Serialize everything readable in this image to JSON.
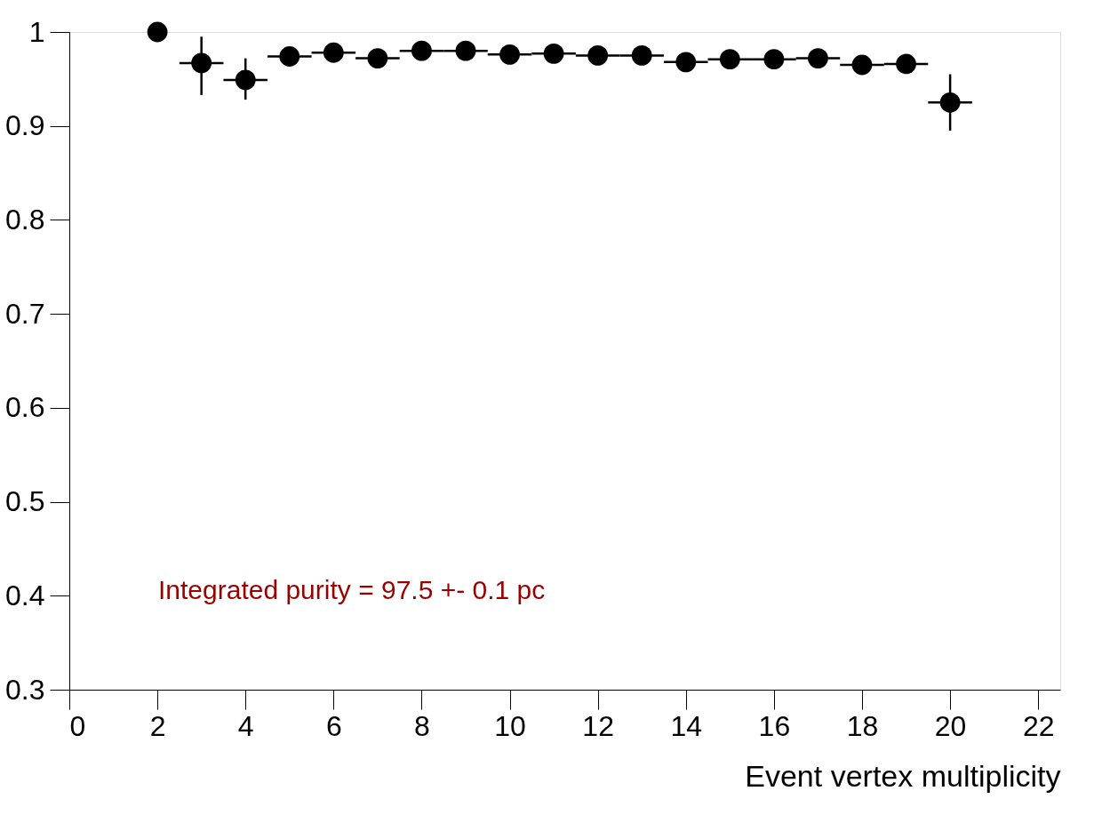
{
  "chart_data": {
    "type": "scatter",
    "xlabel": "Event vertex multiplicity",
    "x": [
      2,
      3,
      4,
      5,
      6,
      7,
      8,
      9,
      10,
      11,
      12,
      13,
      14,
      15,
      16,
      17,
      18,
      19,
      20
    ],
    "series": [
      {
        "color": "#000000",
        "values": [
          1.0,
          0.967,
          0.949,
          0.974,
          0.978,
          0.972,
          0.98,
          0.98,
          0.976,
          0.977,
          0.975,
          0.975,
          0.968,
          0.971,
          0.971,
          0.972,
          0.965,
          0.966,
          0.925
        ],
        "errors": [
          null,
          [
            0.933,
            0.995
          ],
          [
            0.928,
            0.972
          ],
          0.005,
          null,
          null,
          null,
          null,
          null,
          null,
          null,
          null,
          null,
          null,
          null,
          null,
          null,
          0.003,
          [
            0.895,
            0.955
          ]
        ],
        "xerrors": [
          null,
          0.5,
          0.5,
          0.5,
          0.5,
          0.5,
          0.5,
          0.5,
          0.5,
          0.5,
          0.5,
          0.5,
          0.5,
          0.5,
          0.5,
          0.5,
          0.5,
          0.5,
          0.5
        ]
      }
    ],
    "xlim": [
      0,
      22.5
    ],
    "xticks": [
      0,
      2,
      4,
      6,
      8,
      10,
      12,
      14,
      16,
      18,
      20,
      22
    ],
    "ylim": [
      0.3,
      1
    ],
    "yticks": [
      0.3,
      0.4,
      0.5,
      0.6,
      0.7,
      0.8,
      0.9,
      1
    ],
    "annotations": [
      "Integrated purity = 97.5 +- 0.1 pc"
    ],
    "marker": "circle",
    "grid": false
  }
}
